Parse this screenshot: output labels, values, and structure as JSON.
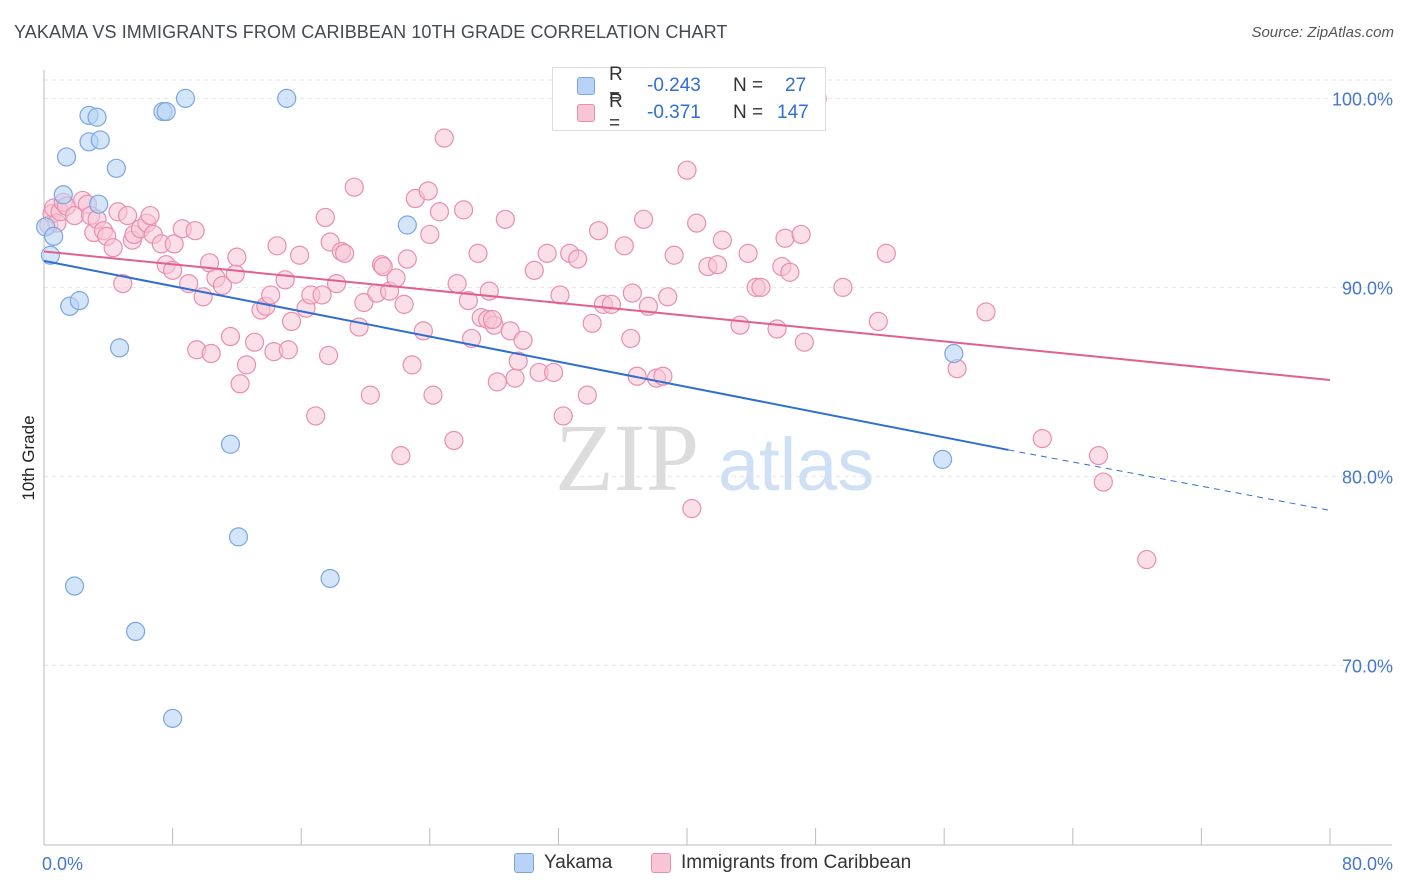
{
  "header": {
    "title": "YAKAMA VS IMMIGRANTS FROM CARIBBEAN 10TH GRADE CORRELATION CHART",
    "source": "Source: ZipAtlas.com"
  },
  "colors": {
    "yakama_fill": "#b8d3f5",
    "yakama_stroke": "#7aa6e0",
    "yakama_line": "#2f6fd0",
    "carib_fill": "#f7c5d6",
    "carib_stroke": "#e88eb0",
    "carib_line": "#e06090",
    "grid": "#e6e6e6",
    "axis_text": "#4477cc"
  },
  "legend": {
    "yakama": {
      "r_label": "R =",
      "r_value": "-0.243",
      "n_label": "N =",
      "n_value": "27"
    },
    "carib": {
      "r_label": "R =",
      "r_value": "-0.371",
      "n_label": "N =",
      "n_value": "147"
    }
  },
  "bottom_legend": {
    "yakama": "Yakama",
    "carib": "Immigrants from Caribbean"
  },
  "watermark": {
    "zip": "ZIP",
    "atlas": "atlas"
  },
  "chart_data": {
    "type": "scatter",
    "title": "YAKAMA VS IMMIGRANTS FROM CARIBBEAN 10TH GRADE CORRELATION CHART",
    "xlabel": "",
    "ylabel": "10th Grade",
    "xlim": [
      0,
      80
    ],
    "ylim": [
      60.5,
      101.5
    ],
    "x_tick_labels": [
      "0.0%",
      "80.0%"
    ],
    "y_ticks": [
      70,
      80,
      90,
      100
    ],
    "y_tick_labels": [
      "70.0%",
      "80.0%",
      "90.0%",
      "100.0%"
    ],
    "series": [
      {
        "name": "Yakama",
        "points": [
          [
            0.1,
            93.2
          ],
          [
            0.6,
            92.7
          ],
          [
            1.4,
            96.9
          ],
          [
            1.2,
            94.9
          ],
          [
            1.6,
            89.0
          ],
          [
            2.2,
            89.3
          ],
          [
            2.8,
            97.7
          ],
          [
            2.8,
            99.1
          ],
          [
            3.3,
            99.0
          ],
          [
            3.4,
            94.4
          ],
          [
            3.5,
            97.8
          ],
          [
            4.5,
            96.3
          ],
          [
            4.7,
            86.8
          ],
          [
            5.7,
            71.8
          ],
          [
            7.4,
            99.3
          ],
          [
            7.6,
            99.3
          ],
          [
            8.0,
            67.2
          ],
          [
            8.8,
            100.0
          ],
          [
            11.6,
            81.7
          ],
          [
            12.1,
            76.8
          ],
          [
            15.1,
            100.0
          ],
          [
            17.8,
            74.6
          ],
          [
            22.6,
            93.3
          ],
          [
            56.6,
            86.5
          ],
          [
            55.9,
            80.9
          ],
          [
            0.4,
            91.7
          ],
          [
            1.9,
            74.2
          ]
        ],
        "trend": {
          "x": [
            0,
            60
          ],
          "y": [
            91.4,
            81.4
          ]
        },
        "trend_dashed": {
          "x": [
            60,
            80
          ],
          "y": [
            81.4,
            78.2
          ]
        }
      },
      {
        "name": "Immigrants from Caribbean",
        "points": [
          [
            0.3,
            93.3
          ],
          [
            0.5,
            93.9
          ],
          [
            0.6,
            94.2
          ],
          [
            0.8,
            93.4
          ],
          [
            1.0,
            94.0
          ],
          [
            1.2,
            94.5
          ],
          [
            1.4,
            94.3
          ],
          [
            1.9,
            93.8
          ],
          [
            2.4,
            94.6
          ],
          [
            2.7,
            94.4
          ],
          [
            2.9,
            93.8
          ],
          [
            3.1,
            92.9
          ],
          [
            3.3,
            93.6
          ],
          [
            3.7,
            93.0
          ],
          [
            3.9,
            92.7
          ],
          [
            4.3,
            92.1
          ],
          [
            4.6,
            94.0
          ],
          [
            4.9,
            90.2
          ],
          [
            5.2,
            93.8
          ],
          [
            5.5,
            92.5
          ],
          [
            5.6,
            92.8
          ],
          [
            6.0,
            93.1
          ],
          [
            6.4,
            93.4
          ],
          [
            6.6,
            93.8
          ],
          [
            6.8,
            92.8
          ],
          [
            7.3,
            92.3
          ],
          [
            7.6,
            91.2
          ],
          [
            8.0,
            90.9
          ],
          [
            8.1,
            92.3
          ],
          [
            8.6,
            93.1
          ],
          [
            9.0,
            90.2
          ],
          [
            9.4,
            93.0
          ],
          [
            9.5,
            86.7
          ],
          [
            9.9,
            89.5
          ],
          [
            10.3,
            91.3
          ],
          [
            10.4,
            86.5
          ],
          [
            10.7,
            90.5
          ],
          [
            11.1,
            90.1
          ],
          [
            11.6,
            87.4
          ],
          [
            11.9,
            90.7
          ],
          [
            12.0,
            91.6
          ],
          [
            12.2,
            84.9
          ],
          [
            12.6,
            85.9
          ],
          [
            13.1,
            87.1
          ],
          [
            13.5,
            88.8
          ],
          [
            13.8,
            89.0
          ],
          [
            14.1,
            89.6
          ],
          [
            14.3,
            86.6
          ],
          [
            14.5,
            92.2
          ],
          [
            15.0,
            90.4
          ],
          [
            15.2,
            86.7
          ],
          [
            15.4,
            88.2
          ],
          [
            15.9,
            91.7
          ],
          [
            16.3,
            88.9
          ],
          [
            16.6,
            89.6
          ],
          [
            16.9,
            83.2
          ],
          [
            17.3,
            89.6
          ],
          [
            17.5,
            93.7
          ],
          [
            17.7,
            86.4
          ],
          [
            17.8,
            92.4
          ],
          [
            18.2,
            90.2
          ],
          [
            18.5,
            91.9
          ],
          [
            18.7,
            91.8
          ],
          [
            19.3,
            95.3
          ],
          [
            19.6,
            87.9
          ],
          [
            19.9,
            89.2
          ],
          [
            20.3,
            84.3
          ],
          [
            20.7,
            89.7
          ],
          [
            21.0,
            91.2
          ],
          [
            21.1,
            91.1
          ],
          [
            21.5,
            89.8
          ],
          [
            21.9,
            90.5
          ],
          [
            22.2,
            81.1
          ],
          [
            22.4,
            89.1
          ],
          [
            22.6,
            91.5
          ],
          [
            22.9,
            85.9
          ],
          [
            23.1,
            94.7
          ],
          [
            23.6,
            87.7
          ],
          [
            23.9,
            95.1
          ],
          [
            24.0,
            92.8
          ],
          [
            24.2,
            84.3
          ],
          [
            24.6,
            94.0
          ],
          [
            24.9,
            97.9
          ],
          [
            25.5,
            81.9
          ],
          [
            25.7,
            90.2
          ],
          [
            26.1,
            94.1
          ],
          [
            26.4,
            89.3
          ],
          [
            26.6,
            87.3
          ],
          [
            27.0,
            91.8
          ],
          [
            27.2,
            88.4
          ],
          [
            27.6,
            88.3
          ],
          [
            27.7,
            89.8
          ],
          [
            28.0,
            88.0
          ],
          [
            28.2,
            85.0
          ],
          [
            28.7,
            93.6
          ],
          [
            29.0,
            87.7
          ],
          [
            29.3,
            85.2
          ],
          [
            29.5,
            86.1
          ],
          [
            29.8,
            87.2
          ],
          [
            30.5,
            90.9
          ],
          [
            30.8,
            85.5
          ],
          [
            31.3,
            91.8
          ],
          [
            31.7,
            85.5
          ],
          [
            32.1,
            89.6
          ],
          [
            32.3,
            83.2
          ],
          [
            32.7,
            91.8
          ],
          [
            33.2,
            91.5
          ],
          [
            33.8,
            84.3
          ],
          [
            34.1,
            88.1
          ],
          [
            34.5,
            93.0
          ],
          [
            34.8,
            89.1
          ],
          [
            35.3,
            89.1
          ],
          [
            36.1,
            92.2
          ],
          [
            36.5,
            87.3
          ],
          [
            36.6,
            89.7
          ],
          [
            36.9,
            85.3
          ],
          [
            37.3,
            93.6
          ],
          [
            37.6,
            89.0
          ],
          [
            38.1,
            85.2
          ],
          [
            38.5,
            85.3
          ],
          [
            38.8,
            89.5
          ],
          [
            39.2,
            91.7
          ],
          [
            40.0,
            96.2
          ],
          [
            40.3,
            78.3
          ],
          [
            40.6,
            93.4
          ],
          [
            41.3,
            91.1
          ],
          [
            41.9,
            91.2
          ],
          [
            42.2,
            92.5
          ],
          [
            43.3,
            88.0
          ],
          [
            43.8,
            91.8
          ],
          [
            44.3,
            90.0
          ],
          [
            44.6,
            90.0
          ],
          [
            45.6,
            87.8
          ],
          [
            45.9,
            91.1
          ],
          [
            46.1,
            92.6
          ],
          [
            46.4,
            90.8
          ],
          [
            47.1,
            92.8
          ],
          [
            47.3,
            87.1
          ],
          [
            48.1,
            100.0
          ],
          [
            49.7,
            90.0
          ],
          [
            51.9,
            88.2
          ],
          [
            52.4,
            91.8
          ],
          [
            56.8,
            85.7
          ],
          [
            58.6,
            88.7
          ],
          [
            62.1,
            82.0
          ],
          [
            65.6,
            81.1
          ],
          [
            65.9,
            79.7
          ],
          [
            68.6,
            75.6
          ],
          [
            27.9,
            88.3
          ]
        ],
        "trend": {
          "x": [
            0,
            80
          ],
          "y": [
            91.9,
            85.1
          ]
        }
      }
    ]
  }
}
